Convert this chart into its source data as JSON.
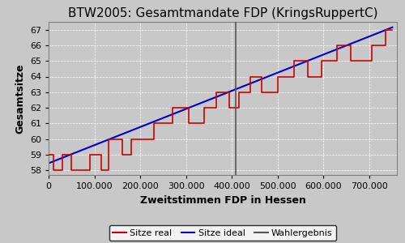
{
  "title": "BTW2005: Gesamtmandate FDP (KringsRuppertC)",
  "xlabel": "Zweitstimmen FDP in Hessen",
  "ylabel": "Gesamtsitze",
  "bg_color": "#c8c8c8",
  "fig_color": "#c8c8c8",
  "ylim": [
    57.7,
    67.5
  ],
  "xlim": [
    0,
    760000
  ],
  "wahlergebnis_x": 408000,
  "ideal_start_y": 58.45,
  "ideal_end_x": 750000,
  "ideal_end_y": 67.15,
  "real_x": [
    0,
    10000,
    10000,
    30000,
    30000,
    50000,
    50000,
    90000,
    90000,
    115000,
    115000,
    130000,
    130000,
    160000,
    160000,
    180000,
    180000,
    230000,
    230000,
    270000,
    270000,
    305000,
    305000,
    340000,
    340000,
    365000,
    365000,
    395000,
    395000,
    415000,
    415000,
    440000,
    440000,
    465000,
    465000,
    500000,
    500000,
    535000,
    535000,
    565000,
    565000,
    595000,
    595000,
    630000,
    630000,
    660000,
    660000,
    705000,
    705000,
    735000,
    735000,
    750000
  ],
  "real_y": [
    59,
    59,
    58,
    58,
    59,
    59,
    58,
    58,
    59,
    59,
    58,
    58,
    60,
    60,
    59,
    59,
    60,
    60,
    61,
    61,
    62,
    62,
    61,
    61,
    62,
    62,
    63,
    63,
    62,
    62,
    63,
    63,
    64,
    64,
    63,
    63,
    64,
    64,
    65,
    65,
    64,
    64,
    65,
    65,
    66,
    66,
    65,
    65,
    66,
    66,
    67,
    67
  ],
  "legend_labels": [
    "Sitze real",
    "Sitze ideal",
    "Wahlergebnis"
  ],
  "legend_colors": [
    "#cc0000",
    "#0000cc",
    "#555555"
  ],
  "grid_color": "#ffffff",
  "tick_label_fontsize": 8,
  "axis_label_fontsize": 9,
  "title_fontsize": 11
}
